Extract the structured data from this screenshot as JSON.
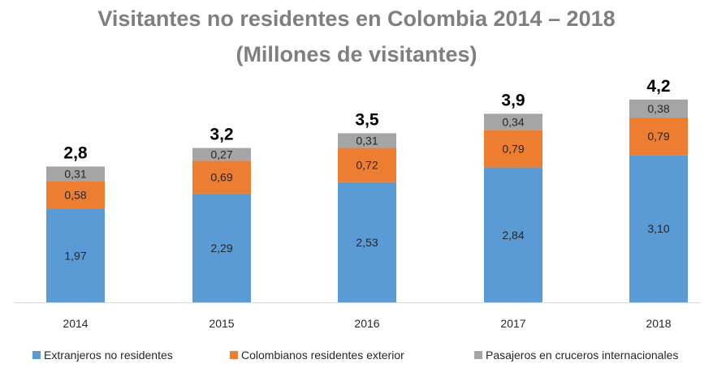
{
  "chart_data": {
    "type": "bar",
    "stacked": true,
    "title": "Visitantes no residentes en Colombia 2014 – 2018",
    "subtitle": "(Millones de visitantes)",
    "categories": [
      "2014",
      "2015",
      "2016",
      "2017",
      "2018"
    ],
    "series": [
      {
        "name": "Extranjeros no residentes",
        "values": [
          1.97,
          2.29,
          2.53,
          2.84,
          3.1
        ],
        "labels": [
          "1,97",
          "2,29",
          "2,53",
          "2,84",
          "3,10"
        ],
        "color": "#5b9bd5"
      },
      {
        "name": "Colombianos residentes exterior",
        "values": [
          0.58,
          0.69,
          0.72,
          0.79,
          0.79
        ],
        "labels": [
          "0,58",
          "0,69",
          "0,72",
          "0,79",
          "0,79"
        ],
        "color": "#ed7d31"
      },
      {
        "name": "Pasajeros en cruceros internacionales",
        "values": [
          0.31,
          0.27,
          0.31,
          0.34,
          0.38
        ],
        "labels": [
          "0,31",
          "0,27",
          "0,31",
          "0,34",
          "0,38"
        ],
        "color": "#a5a5a5"
      }
    ],
    "totals": [
      "2,8",
      "3,2",
      "3,5",
      "3,9",
      "4,2"
    ],
    "legend_position": "bottom",
    "grid": false,
    "ylim": [
      0,
      4.5
    ]
  }
}
